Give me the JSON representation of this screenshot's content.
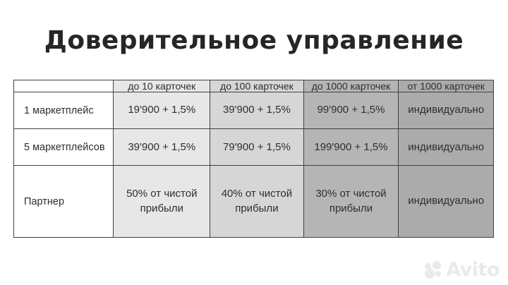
{
  "page": {
    "title": "Доверительное управление"
  },
  "theme": {
    "page_bg": "#ffffff",
    "title_color": "#262626",
    "border_color": "#414141",
    "text_color": "#2e2e2e",
    "watermark_color": "#eaeaea",
    "column_bg": [
      "#ffffff",
      "#e7e7e7",
      "#d6d6d6",
      "#b5b5b5",
      "#ababab"
    ]
  },
  "chart_data": {
    "type": "table",
    "title": "Доверительное управление",
    "column_headers": [
      "",
      "до 10 карточек",
      "до 100 карточек",
      "до 1000 карточек",
      "от 1000 карточек"
    ],
    "row_headers": [
      "1 маркетплейс",
      "5 маркетплейсов",
      "Партнер"
    ],
    "cells": [
      [
        "19'900 + 1,5%",
        "39'900 + 1,5%",
        "99'900 + 1,5%",
        "индивидуально"
      ],
      [
        "39'900 + 1,5%",
        "79'900 + 1,5%",
        "199'900 + 1,5%",
        "индивидуально"
      ],
      [
        "50% от чистой прибыли",
        "40% от чистой прибыли",
        "30% от чистой прибыли",
        "индивидуально"
      ]
    ],
    "layout_hints": {
      "column_shading": "light to dark, left to right",
      "grid": "solid dark 1px borders",
      "first_column": "row labels, white background, left-aligned"
    }
  },
  "watermark": {
    "text": "Avito"
  }
}
